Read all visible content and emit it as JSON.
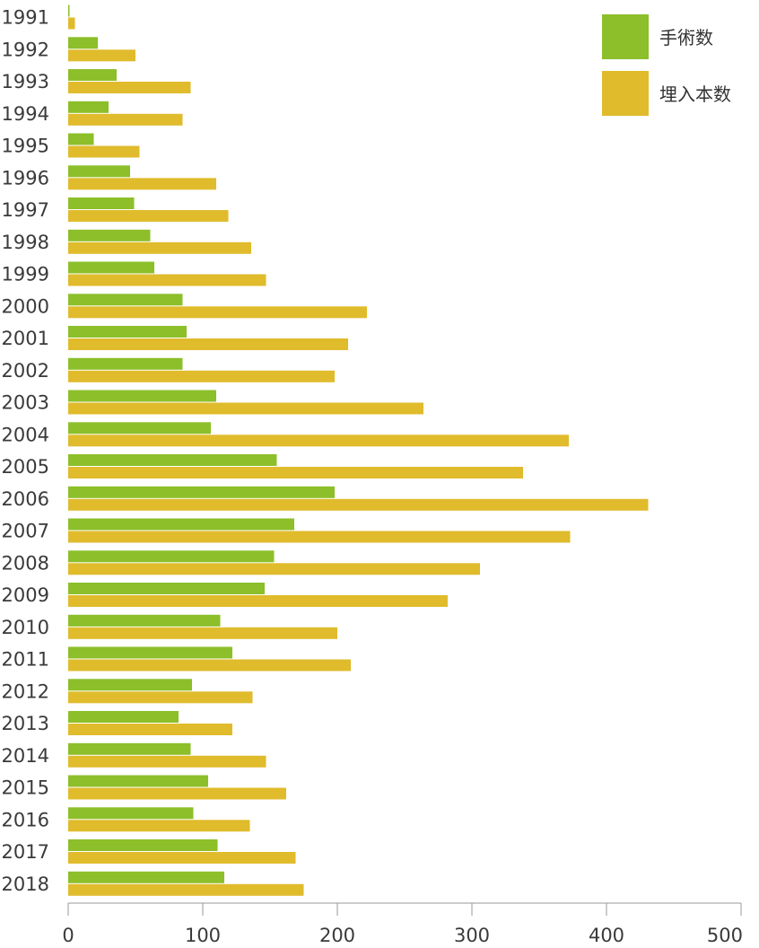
{
  "chart_data": {
    "type": "bar",
    "orientation": "horizontal",
    "title": "",
    "xlabel": "",
    "ylabel": "",
    "xlim": [
      0,
      500
    ],
    "x_ticks": [
      0,
      100,
      200,
      300,
      400,
      500
    ],
    "grid": false,
    "legend_placement": "top-right",
    "categories": [
      "1991",
      "1992",
      "1993",
      "1994",
      "1995",
      "1996",
      "1997",
      "1998",
      "1999",
      "2000",
      "2001",
      "2002",
      "2003",
      "2004",
      "2005",
      "2006",
      "2007",
      "2008",
      "2009",
      "2010",
      "2011",
      "2012",
      "2013",
      "2014",
      "2015",
      "2016",
      "2017",
      "2018"
    ],
    "series": [
      {
        "name": "手術数",
        "color": "#8cbf2a",
        "values": [
          1,
          22,
          36,
          30,
          19,
          46,
          49,
          61,
          64,
          85,
          88,
          85,
          110,
          106,
          155,
          198,
          168,
          153,
          146,
          113,
          122,
          92,
          82,
          91,
          104,
          93,
          111,
          116
        ]
      },
      {
        "name": "埋入本数",
        "color": "#e0bb2c",
        "values": [
          5,
          50,
          91,
          85,
          53,
          110,
          119,
          136,
          147,
          222,
          208,
          198,
          264,
          372,
          338,
          431,
          373,
          306,
          282,
          200,
          210,
          137,
          122,
          147,
          162,
          135,
          169,
          175
        ]
      }
    ]
  }
}
